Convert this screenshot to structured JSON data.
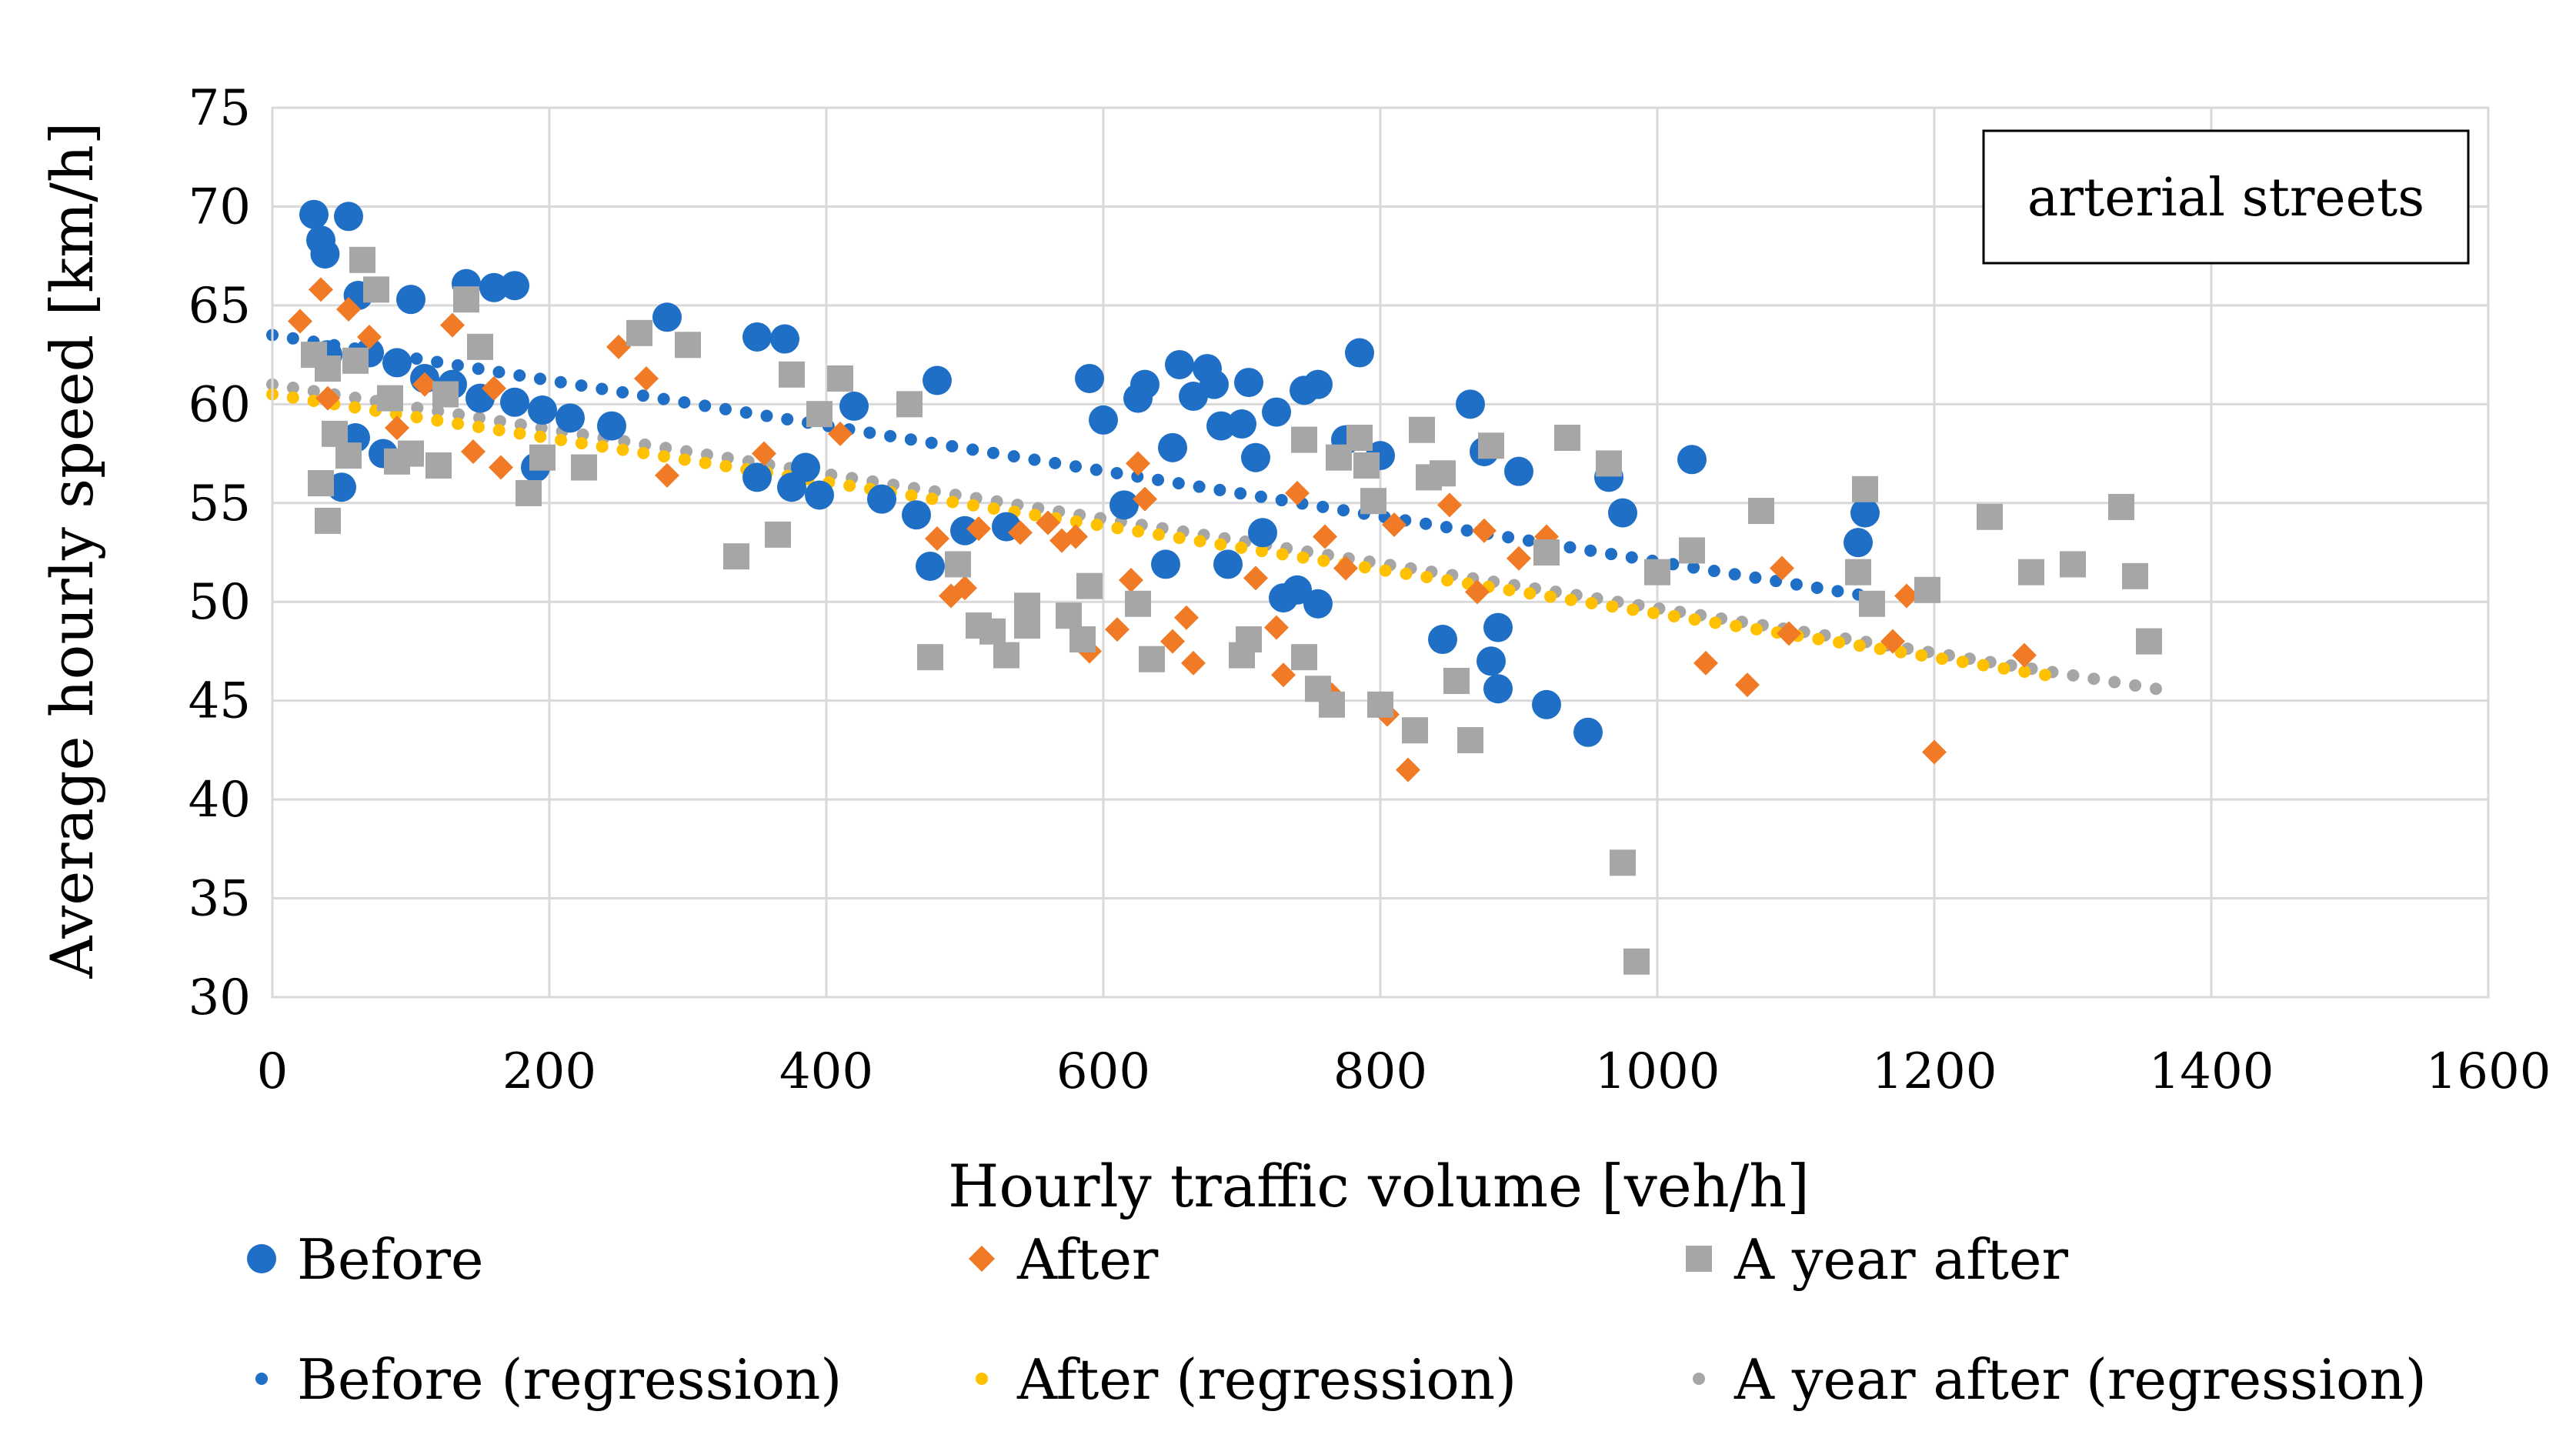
{
  "chart_data": {
    "type": "scatter",
    "title": "",
    "xlabel": "Hourly traffic volume [veh/h]",
    "ylabel": "Average hourly speed [km/h]",
    "xlim": [
      0,
      1600
    ],
    "ylim": [
      30,
      75
    ],
    "xticks": [
      0,
      200,
      400,
      600,
      800,
      1000,
      1200,
      1400,
      1600
    ],
    "yticks": [
      30,
      35,
      40,
      45,
      50,
      55,
      60,
      65,
      70,
      75
    ],
    "grid": true,
    "annotation": "arterial streets",
    "colors": {
      "before": "#1F6FC6",
      "after": "#F07A26",
      "year": "#A6A6A6",
      "after_reg": "#FFC000"
    },
    "series": [
      {
        "name": "Before",
        "marker": "circle",
        "color": "#1F6FC6",
        "points": [
          [
            30,
            69.6
          ],
          [
            55,
            69.5
          ],
          [
            35,
            68.3
          ],
          [
            38,
            67.6
          ],
          [
            62,
            65.5
          ],
          [
            100,
            65.3
          ],
          [
            140,
            66.1
          ],
          [
            160,
            65.9
          ],
          [
            175,
            66
          ],
          [
            285,
            64.4
          ],
          [
            350,
            63.4
          ],
          [
            370,
            63.3
          ],
          [
            480,
            61.2
          ],
          [
            420,
            59.9
          ],
          [
            40,
            62.5
          ],
          [
            70,
            62.6
          ],
          [
            90,
            62.1
          ],
          [
            110,
            61.3
          ],
          [
            130,
            61
          ],
          [
            150,
            60.3
          ],
          [
            175,
            60.1
          ],
          [
            195,
            59.7
          ],
          [
            215,
            59.3
          ],
          [
            245,
            58.9
          ],
          [
            60,
            58.3
          ],
          [
            80,
            57.5
          ],
          [
            50,
            55.8
          ],
          [
            190,
            56.8
          ],
          [
            385,
            56.8
          ],
          [
            395,
            55.4
          ],
          [
            375,
            55.8
          ],
          [
            350,
            56.3
          ],
          [
            440,
            55.2
          ],
          [
            465,
            54.4
          ],
          [
            475,
            51.8
          ],
          [
            500,
            53.6
          ],
          [
            530,
            53.8
          ],
          [
            590,
            61.3
          ],
          [
            600,
            59.2
          ],
          [
            615,
            54.9
          ],
          [
            625,
            60.3
          ],
          [
            630,
            61
          ],
          [
            645,
            51.9
          ],
          [
            650,
            57.8
          ],
          [
            655,
            62
          ],
          [
            665,
            60.4
          ],
          [
            675,
            61.8
          ],
          [
            680,
            61
          ],
          [
            685,
            58.9
          ],
          [
            690,
            51.9
          ],
          [
            700,
            59
          ],
          [
            705,
            61.1
          ],
          [
            710,
            57.3
          ],
          [
            715,
            53.5
          ],
          [
            725,
            59.6
          ],
          [
            730,
            50.2
          ],
          [
            740,
            50.6
          ],
          [
            745,
            60.7
          ],
          [
            755,
            61
          ],
          [
            755,
            49.9
          ],
          [
            775,
            58.2
          ],
          [
            785,
            62.6
          ],
          [
            800,
            57.4
          ],
          [
            845,
            48.1
          ],
          [
            865,
            60
          ],
          [
            875,
            57.6
          ],
          [
            880,
            47
          ],
          [
            885,
            48.7
          ],
          [
            885,
            45.6
          ],
          [
            900,
            56.6
          ],
          [
            920,
            44.8
          ],
          [
            950,
            43.4
          ],
          [
            965,
            56.3
          ],
          [
            975,
            54.5
          ],
          [
            1025,
            57.2
          ],
          [
            1150,
            54.5
          ],
          [
            1145,
            53
          ]
        ]
      },
      {
        "name": "After",
        "marker": "diamond",
        "color": "#F07A26",
        "points": [
          [
            20,
            64.2
          ],
          [
            35,
            65.8
          ],
          [
            55,
            64.8
          ],
          [
            70,
            63.4
          ],
          [
            40,
            60.3
          ],
          [
            90,
            58.8
          ],
          [
            110,
            61
          ],
          [
            130,
            64
          ],
          [
            145,
            57.6
          ],
          [
            165,
            56.8
          ],
          [
            160,
            60.8
          ],
          [
            250,
            62.9
          ],
          [
            270,
            61.3
          ],
          [
            285,
            56.4
          ],
          [
            355,
            57.5
          ],
          [
            410,
            58.5
          ],
          [
            480,
            53.2
          ],
          [
            490,
            50.3
          ],
          [
            500,
            50.7
          ],
          [
            510,
            53.7
          ],
          [
            540,
            53.5
          ],
          [
            560,
            54
          ],
          [
            570,
            53.1
          ],
          [
            580,
            53.3
          ],
          [
            590,
            47.5
          ],
          [
            610,
            48.6
          ],
          [
            620,
            51.1
          ],
          [
            625,
            57
          ],
          [
            630,
            55.2
          ],
          [
            650,
            48
          ],
          [
            660,
            49.2
          ],
          [
            665,
            46.9
          ],
          [
            710,
            51.2
          ],
          [
            725,
            48.7
          ],
          [
            730,
            46.3
          ],
          [
            740,
            55.5
          ],
          [
            760,
            53.3
          ],
          [
            765,
            45.3
          ],
          [
            775,
            51.7
          ],
          [
            805,
            44.3
          ],
          [
            810,
            53.9
          ],
          [
            820,
            41.5
          ],
          [
            850,
            54.9
          ],
          [
            870,
            50.5
          ],
          [
            875,
            53.6
          ],
          [
            900,
            52.2
          ],
          [
            920,
            53.3
          ],
          [
            1035,
            46.9
          ],
          [
            1065,
            45.8
          ],
          [
            1090,
            51.7
          ],
          [
            1095,
            48.4
          ],
          [
            1170,
            48
          ],
          [
            1180,
            50.3
          ],
          [
            1200,
            42.4
          ],
          [
            1265,
            47.3
          ]
        ]
      },
      {
        "name": "A year after",
        "marker": "square",
        "color": "#A6A6A6",
        "points": [
          [
            30,
            62.5
          ],
          [
            40,
            61.8
          ],
          [
            35,
            56
          ],
          [
            40,
            54.1
          ],
          [
            45,
            58.5
          ],
          [
            55,
            57.4
          ],
          [
            60,
            62.2
          ],
          [
            65,
            67.3
          ],
          [
            75,
            65.8
          ],
          [
            85,
            60.3
          ],
          [
            90,
            57.1
          ],
          [
            100,
            57.5
          ],
          [
            120,
            56.9
          ],
          [
            125,
            60.5
          ],
          [
            140,
            65.3
          ],
          [
            150,
            62.9
          ],
          [
            185,
            55.5
          ],
          [
            195,
            57.3
          ],
          [
            225,
            56.8
          ],
          [
            265,
            63.6
          ],
          [
            300,
            63
          ],
          [
            335,
            52.3
          ],
          [
            365,
            53.4
          ],
          [
            375,
            61.5
          ],
          [
            395,
            59.5
          ],
          [
            410,
            61.3
          ],
          [
            460,
            60
          ],
          [
            475,
            47.2
          ],
          [
            495,
            51.9
          ],
          [
            510,
            48.8
          ],
          [
            520,
            48.5
          ],
          [
            530,
            47.3
          ],
          [
            545,
            48.8
          ],
          [
            545,
            49.8
          ],
          [
            575,
            49.3
          ],
          [
            585,
            48.1
          ],
          [
            590,
            50.8
          ],
          [
            625,
            49.9
          ],
          [
            635,
            47.1
          ],
          [
            700,
            47.3
          ],
          [
            705,
            48.1
          ],
          [
            745,
            47.2
          ],
          [
            745,
            58.2
          ],
          [
            755,
            45.6
          ],
          [
            765,
            44.8
          ],
          [
            770,
            57.3
          ],
          [
            785,
            58.3
          ],
          [
            790,
            56.9
          ],
          [
            795,
            55.1
          ],
          [
            800,
            44.8
          ],
          [
            825,
            43.5
          ],
          [
            830,
            58.7
          ],
          [
            835,
            56.3
          ],
          [
            845,
            56.5
          ],
          [
            855,
            46
          ],
          [
            865,
            43
          ],
          [
            880,
            57.9
          ],
          [
            920,
            52.5
          ],
          [
            935,
            58.3
          ],
          [
            965,
            57
          ],
          [
            975,
            36.8
          ],
          [
            985,
            31.8
          ],
          [
            1000,
            51.5
          ],
          [
            1025,
            52.6
          ],
          [
            1075,
            54.6
          ],
          [
            1145,
            51.5
          ],
          [
            1150,
            55.7
          ],
          [
            1155,
            49.9
          ],
          [
            1195,
            50.6
          ],
          [
            1240,
            54.3
          ],
          [
            1270,
            51.5
          ],
          [
            1300,
            51.9
          ],
          [
            1335,
            54.8
          ],
          [
            1345,
            51.3
          ],
          [
            1355,
            48
          ]
        ]
      }
    ],
    "regressions": [
      {
        "name": "Before (regression)",
        "color": "#1F6FC6",
        "x_start": 0,
        "y_start": 63.5,
        "x_end": 1160,
        "y_end": 50.2
      },
      {
        "name": "After (regression)",
        "color": "#FFC000",
        "x_start": 0,
        "y_start": 60.5,
        "x_end": 1280,
        "y_end": 46.3
      },
      {
        "name": "A year after (regression)",
        "color": "#A6A6A6",
        "x_start": 0,
        "y_start": 61,
        "x_end": 1360,
        "y_end": 45.6
      }
    ],
    "legend": [
      {
        "label": "Before",
        "marker": "circle",
        "color": "#1F6FC6"
      },
      {
        "label": "After",
        "marker": "diamond",
        "color": "#F07A26"
      },
      {
        "label": "A year after",
        "marker": "square",
        "color": "#A6A6A6"
      },
      {
        "label": "Before (regression)",
        "marker": "dot",
        "color": "#1F6FC6"
      },
      {
        "label": "After (regression)",
        "marker": "dot",
        "color": "#FFC000"
      },
      {
        "label": "A year after (regression)",
        "marker": "dot",
        "color": "#A6A6A6"
      }
    ],
    "legend_position": "bottom"
  }
}
